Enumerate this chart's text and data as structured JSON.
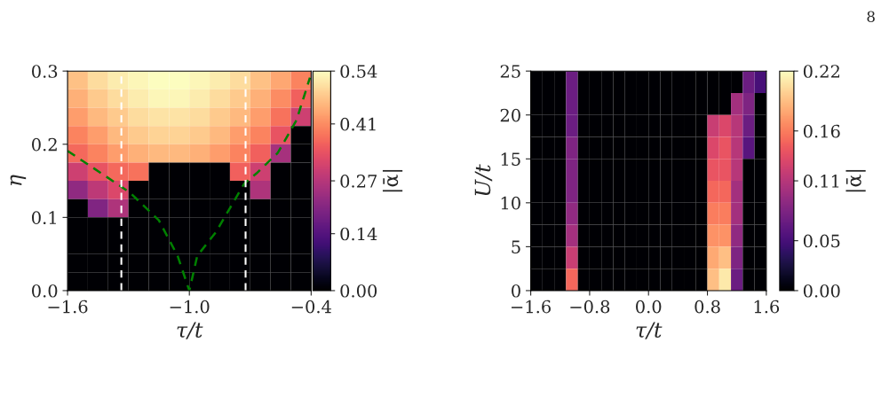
{
  "chart_data": [
    {
      "type": "heatmap",
      "xlabel": "τ/t",
      "ylabel": "η",
      "clabel": "|ᾱ|",
      "cells": [
        [
          0.47,
          0.5,
          0.52,
          0.53,
          0.54,
          0.54,
          0.53,
          0.52,
          0.5,
          0.47,
          0.44,
          0.4
        ],
        [
          0.45,
          0.48,
          0.5,
          0.52,
          0.53,
          0.53,
          0.52,
          0.5,
          0.48,
          0.45,
          0.41,
          0.36
        ],
        [
          0.43,
          0.46,
          0.48,
          0.5,
          0.51,
          0.51,
          0.5,
          0.48,
          0.46,
          0.43,
          0.38,
          0.3
        ],
        [
          0.4,
          0.43,
          0.46,
          0.48,
          0.49,
          0.49,
          0.48,
          0.46,
          0.43,
          0.4,
          0.34,
          0
        ],
        [
          0.37,
          0.4,
          0.43,
          0.45,
          0.46,
          0.46,
          0.45,
          0.43,
          0.4,
          0.36,
          0.25,
          0
        ],
        [
          0.3,
          0.34,
          0.37,
          0.38,
          0,
          0,
          0,
          0,
          0.36,
          0.3,
          0,
          0
        ],
        [
          0.22,
          0.28,
          0.32,
          0,
          0,
          0,
          0,
          0,
          0,
          0.26,
          0,
          0
        ],
        [
          0,
          0.2,
          0.26,
          0,
          0,
          0,
          0,
          0,
          0,
          0,
          0,
          0
        ],
        [
          0,
          0,
          0,
          0,
          0,
          0,
          0,
          0,
          0,
          0,
          0,
          0
        ],
        [
          0,
          0,
          0,
          0,
          0,
          0,
          0,
          0,
          0,
          0,
          0,
          0
        ],
        [
          0,
          0,
          0,
          0,
          0,
          0,
          0,
          0,
          0,
          0,
          0,
          0
        ],
        [
          0,
          0,
          0,
          0,
          0,
          0,
          0,
          0,
          0,
          0,
          0,
          0
        ]
      ],
      "xlim": [
        -1.6,
        -0.4
      ],
      "ylim": [
        0,
        0.3
      ],
      "xticks": [
        {
          "value": -1.6,
          "label": "−1.6"
        },
        {
          "value": -1.0,
          "label": "−1.0"
        },
        {
          "value": -0.4,
          "label": "−0.4"
        }
      ],
      "yticks": [
        {
          "value": 0,
          "label": "0.0"
        },
        0.1,
        0.2,
        0.3
      ],
      "clim": [
        0,
        0.54
      ],
      "cticks": [
        {
          "value": 0,
          "label": "0.00"
        },
        0.14,
        0.27,
        0.41,
        0.54
      ],
      "series": [
        {
          "type": "line",
          "color": "#008000",
          "line_style": "dashed",
          "x": [
            -1.6,
            -1.335,
            -1.289,
            -1.15,
            -1.058,
            -1.0,
            -0.961,
            -0.869,
            -0.73,
            -0.67,
            -0.565,
            -0.472,
            -0.406
          ],
          "values": [
            0.191,
            0.142,
            0.133,
            0.096,
            0.0475,
            0.0,
            0.0475,
            0.08,
            0.146,
            0.16,
            0.188,
            0.233,
            0.291
          ]
        }
      ],
      "ref_lines": [
        {
          "axis": "x",
          "value": -1.335,
          "color": "#ffffff",
          "line_style": "dashed"
        },
        {
          "axis": "x",
          "value": -0.723,
          "color": "#ffffff",
          "line_style": "dashed"
        }
      ],
      "annotations": [
        "8"
      ]
    },
    {
      "type": "heatmap",
      "xlabel": "τ/t",
      "ylabel": "U/t",
      "clabel": "|ᾱ|",
      "cells": [
        [
          0,
          0,
          0,
          0.07,
          0,
          0,
          0,
          0,
          0,
          0,
          0,
          0,
          0,
          0,
          0,
          0,
          0,
          0,
          0.07,
          0.05
        ],
        [
          0,
          0,
          0,
          0.07,
          0,
          0,
          0,
          0,
          0,
          0,
          0,
          0,
          0,
          0,
          0,
          0,
          0,
          0.1,
          0.08,
          0
        ],
        [
          0,
          0,
          0,
          0.07,
          0,
          0,
          0,
          0,
          0,
          0,
          0,
          0,
          0,
          0,
          0,
          0.12,
          0.13,
          0.11,
          0.07,
          0
        ],
        [
          0,
          0,
          0,
          0.08,
          0,
          0,
          0,
          0,
          0,
          0,
          0,
          0,
          0,
          0,
          0,
          0.13,
          0.14,
          0.11,
          0.06,
          0
        ],
        [
          0,
          0,
          0,
          0.08,
          0,
          0,
          0,
          0,
          0,
          0,
          0,
          0,
          0,
          0,
          0,
          0.14,
          0.14,
          0.11,
          0,
          0
        ],
        [
          0,
          0,
          0,
          0.08,
          0,
          0,
          0,
          0,
          0,
          0,
          0,
          0,
          0,
          0,
          0,
          0.15,
          0.15,
          0.1,
          0,
          0
        ],
        [
          0,
          0,
          0,
          0.09,
          0,
          0,
          0,
          0,
          0,
          0,
          0,
          0,
          0,
          0,
          0,
          0.16,
          0.16,
          0.1,
          0,
          0
        ],
        [
          0,
          0,
          0,
          0.1,
          0,
          0,
          0,
          0,
          0,
          0,
          0,
          0,
          0,
          0,
          0,
          0.17,
          0.17,
          0.09,
          0,
          0
        ],
        [
          0,
          0,
          0,
          0.12,
          0,
          0,
          0,
          0,
          0,
          0,
          0,
          0,
          0,
          0,
          0,
          0.18,
          0.19,
          0.08,
          0,
          0
        ],
        [
          0,
          0,
          0,
          0.15,
          0,
          0,
          0,
          0,
          0,
          0,
          0,
          0,
          0,
          0,
          0,
          0.19,
          0.21,
          0.07,
          0,
          0
        ]
      ],
      "xlim": [
        -1.6,
        1.6
      ],
      "ylim": [
        0,
        25
      ],
      "xticks": [
        {
          "value": -1.6,
          "label": "−1.6"
        },
        {
          "value": -0.8,
          "label": "−0.8"
        },
        {
          "value": 0,
          "label": "0.0"
        },
        0.8,
        1.6
      ],
      "yticks": [
        0,
        5,
        10,
        15,
        20,
        25
      ],
      "clim": [
        0,
        0.22
      ],
      "cticks": [
        {
          "value": 0,
          "label": "0.00"
        },
        0.05,
        0.11,
        0.16,
        0.22
      ]
    }
  ]
}
